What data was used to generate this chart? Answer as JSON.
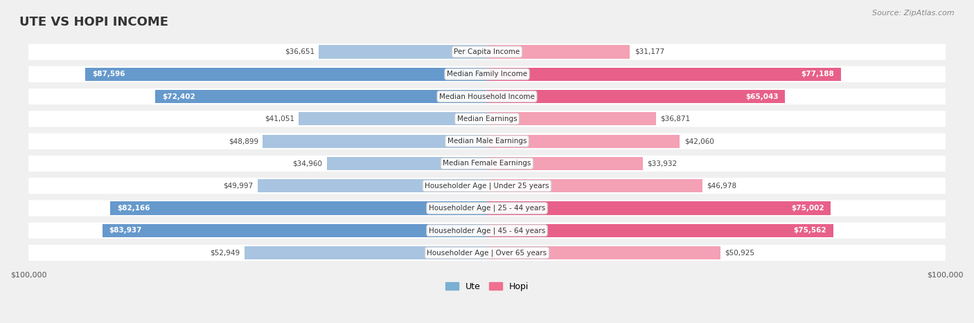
{
  "title": "UTE VS HOPI INCOME",
  "source": "Source: ZipAtlas.com",
  "max_value": 100000,
  "categories": [
    "Per Capita Income",
    "Median Family Income",
    "Median Household Income",
    "Median Earnings",
    "Median Male Earnings",
    "Median Female Earnings",
    "Householder Age | Under 25 years",
    "Householder Age | 25 - 44 years",
    "Householder Age | 45 - 64 years",
    "Householder Age | Over 65 years"
  ],
  "ute_values": [
    36651,
    87596,
    72402,
    41051,
    48899,
    34960,
    49997,
    82166,
    83937,
    52949
  ],
  "hopi_values": [
    31177,
    77188,
    65043,
    36871,
    42060,
    33932,
    46978,
    75002,
    75562,
    50925
  ],
  "ute_labels": [
    "$36,651",
    "$87,596",
    "$72,402",
    "$41,051",
    "$48,899",
    "$34,960",
    "$49,997",
    "$82,166",
    "$83,937",
    "$52,949"
  ],
  "hopi_labels": [
    "$31,177",
    "$77,188",
    "$65,043",
    "$36,871",
    "$42,060",
    "$33,932",
    "$46,978",
    "$75,002",
    "$75,562",
    "$50,925"
  ],
  "ute_color_light": "#a8c4e0",
  "ute_color_dark": "#6699cc",
  "hopi_color_light": "#f4a0b5",
  "hopi_color_dark": "#e8608a",
  "ute_dark_threshold": 60000,
  "background_color": "#f5f5f5",
  "row_bg_color": "#ebebeb",
  "row_bg_alt": "#f8f8f8",
  "label_fontsize": 9,
  "title_fontsize": 13,
  "legend_ute_color": "#7bafd4",
  "legend_hopi_color": "#f07090"
}
